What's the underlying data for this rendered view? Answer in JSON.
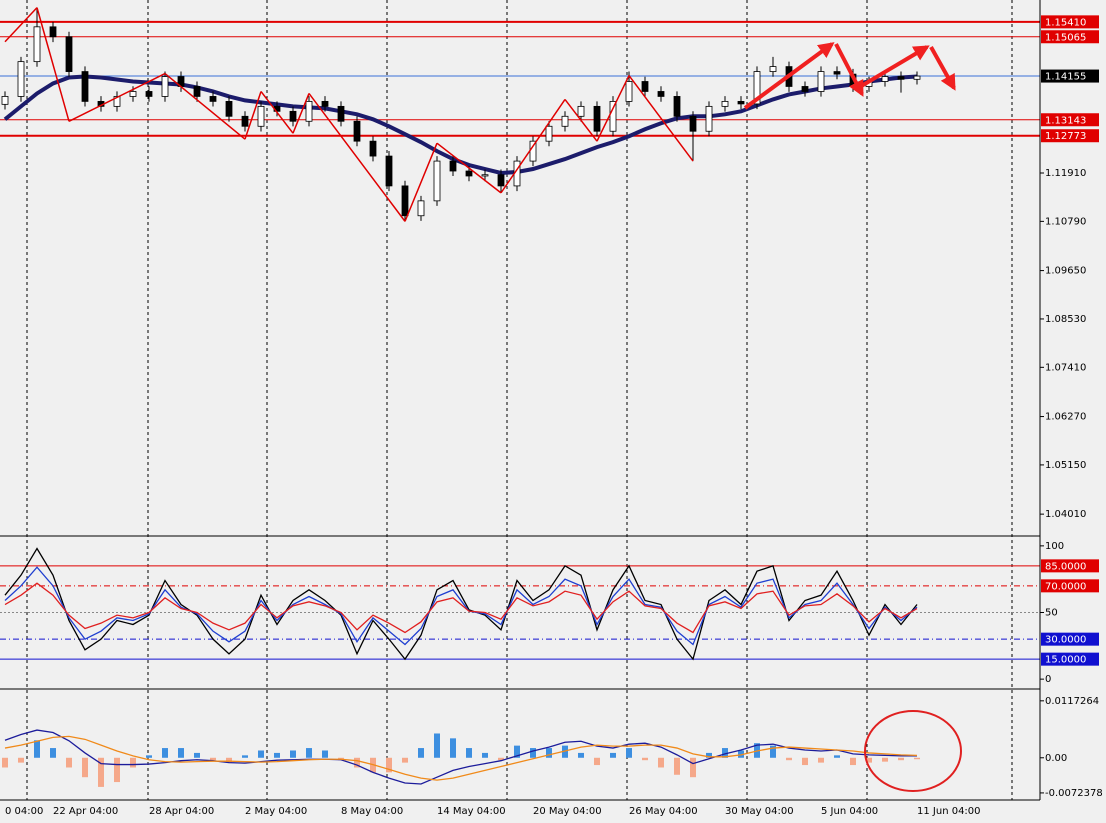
{
  "chart_data": [
    {
      "type": "candlestick",
      "categories": [
        "0 04:00",
        null,
        null,
        "22 Apr 04:00",
        null,
        null,
        null,
        null,
        null,
        "28 Apr 04:00",
        null,
        null,
        null,
        null,
        null,
        "2 May 04:00",
        null,
        null,
        null,
        null,
        null,
        "8 May 04:00",
        null,
        null,
        null,
        null,
        null,
        "14 May 04:00",
        null,
        null,
        null,
        null,
        null,
        "20 May 04:00",
        null,
        null,
        null,
        null,
        null,
        "26 May 04:00",
        null,
        null,
        null,
        null,
        null,
        "30 May 04:00",
        null,
        null,
        null,
        null,
        null,
        "5 Jun 04:00",
        null,
        null,
        null,
        null,
        null,
        "11 Jun 04:00"
      ],
      "open": [
        1.135,
        1.13683,
        1.14489,
        1.15295,
        1.15065,
        1.14259,
        1.13568,
        1.13453,
        1.13683,
        1.13798,
        1.13683,
        1.14144,
        1.13914,
        1.13683,
        1.13568,
        1.13223,
        1.12992,
        1.13453,
        1.13338,
        1.13108,
        1.13568,
        1.13453,
        1.13108,
        1.12647,
        1.12302,
        1.11611,
        1.1092,
        1.11265,
        1.12186,
        1.11956,
        1.11841,
        1.1187,
        1.11611,
        1.12186,
        1.12647,
        1.12992,
        1.13223,
        1.13453,
        1.12877,
        1.13568,
        1.14029,
        1.13798,
        1.13683,
        1.13223,
        1.12877,
        1.13453,
        1.13568,
        1.1351,
        1.14259,
        1.14374,
        1.13914,
        1.13798,
        1.14259,
        1.142,
        1.13914,
        1.14029,
        1.14144,
        1.1408
      ],
      "high": [
        1.138,
        1.146,
        1.1574,
        1.1541,
        1.1518,
        1.1438,
        1.1369,
        1.138,
        1.1392,
        1.1392,
        1.1426,
        1.1426,
        1.1403,
        1.138,
        1.1369,
        1.1334,
        1.1357,
        1.1357,
        1.1345,
        1.1369,
        1.1369,
        1.1357,
        1.1322,
        1.1276,
        1.1242,
        1.1173,
        1.1138,
        1.123,
        1.123,
        1.1207,
        1.1199,
        1.1199,
        1.123,
        1.1276,
        1.1311,
        1.1334,
        1.1357,
        1.1357,
        1.1369,
        1.1426,
        1.1414,
        1.1392,
        1.138,
        1.1334,
        1.1357,
        1.1369,
        1.1369,
        1.1438,
        1.146,
        1.1449,
        1.1403,
        1.1438,
        1.1438,
        1.1432,
        1.1414,
        1.1426,
        1.1426,
        1.1426
      ],
      "low": [
        1.1338,
        1.1356,
        1.1437,
        1.1494,
        1.1414,
        1.1345,
        1.1333,
        1.1333,
        1.1356,
        1.1356,
        1.1356,
        1.1379,
        1.1356,
        1.1345,
        1.131,
        1.1287,
        1.1287,
        1.1322,
        1.1299,
        1.1299,
        1.1333,
        1.1299,
        1.1253,
        1.1218,
        1.1149,
        1.1079,
        1.108,
        1.1115,
        1.1184,
        1.1172,
        1.1172,
        1.1145,
        1.1149,
        1.1207,
        1.1253,
        1.1287,
        1.131,
        1.1276,
        1.1276,
        1.1345,
        1.1368,
        1.1356,
        1.131,
        1.12186,
        1.1276,
        1.1333,
        1.1339,
        1.1339,
        1.1414,
        1.1379,
        1.1368,
        1.1368,
        1.1408,
        1.1379,
        1.1379,
        1.1391,
        1.1377,
        1.1396
      ],
      "close": [
        1.13683,
        1.14489,
        1.15295,
        1.15065,
        1.14259,
        1.13568,
        1.13453,
        1.13683,
        1.13798,
        1.13683,
        1.14144,
        1.13914,
        1.13683,
        1.13568,
        1.13223,
        1.12992,
        1.13453,
        1.13338,
        1.13108,
        1.13568,
        1.13453,
        1.13108,
        1.12647,
        1.12302,
        1.11611,
        1.1092,
        1.11265,
        1.12186,
        1.11956,
        1.11841,
        1.1187,
        1.11611,
        1.12186,
        1.12647,
        1.12992,
        1.13223,
        1.13453,
        1.12877,
        1.13568,
        1.14029,
        1.13798,
        1.13683,
        1.13223,
        1.12877,
        1.13453,
        1.13568,
        1.1351,
        1.14259,
        1.14374,
        1.13914,
        1.13798,
        1.14259,
        1.142,
        1.13914,
        1.14029,
        1.14144,
        1.1408,
        1.14155
      ],
      "up_color": "#ffffff",
      "down_color": "#000000",
      "series": [
        {
          "color": "#1c1c6b",
          "values": [
            1.13154,
            1.13453,
            1.13752,
            1.13983,
            1.14121,
            1.14144,
            1.14121,
            1.14075,
            1.14029,
            1.14006,
            1.13983,
            1.1396,
            1.13891,
            1.13798,
            1.13683,
            1.13591,
            1.13545,
            1.13499,
            1.13453,
            1.1343,
            1.13407,
            1.13338,
            1.13269,
            1.13154,
            1.12992,
            1.12808,
            1.12624,
            1.12417,
            1.12232,
            1.12094,
            1.12002,
            1.1191,
            1.11933,
            1.12002,
            1.12117,
            1.12232,
            1.12371,
            1.12509,
            1.12624,
            1.12762,
            1.12923,
            1.13062,
            1.13177,
            1.13223,
            1.13223,
            1.13269,
            1.13338,
            1.13476,
            1.13614,
            1.13729,
            1.13798,
            1.13868,
            1.13914,
            1.1396,
            1.14029,
            1.14075,
            1.14121,
            1.14144
          ]
        }
      ],
      "zigzag": {
        "color": "#e00000",
        "values": [
          1.1495,
          null,
          1.1574,
          null,
          1.13108,
          null,
          null,
          null,
          null,
          null,
          1.14213,
          null,
          null,
          null,
          null,
          1.12693,
          1.13798,
          null,
          1.12831,
          1.13752,
          null,
          null,
          null,
          null,
          null,
          1.1079,
          null,
          1.12601,
          null,
          null,
          null,
          1.1145,
          null,
          null,
          null,
          1.13614,
          null,
          1.12647,
          null,
          1.14167,
          null,
          null,
          null,
          1.12186,
          null,
          null,
          null,
          null,
          null,
          null,
          null,
          null,
          null,
          null,
          null,
          null,
          null,
          null
        ]
      },
      "levels": [
        {
          "value": 1.1541,
          "label": "1.15410",
          "color": "#e00000",
          "box": "#e00000",
          "width": 2
        },
        {
          "value": 1.15065,
          "label": "1.15065",
          "color": "#e00000",
          "box": "#e00000",
          "width": 1
        },
        {
          "value": 1.14155,
          "label": "1.14155",
          "color": "#3a6fd8",
          "box": "#000000",
          "width": 1
        },
        {
          "value": 1.13143,
          "label": "1.13143",
          "color": "#e00000",
          "box": "#e00000",
          "width": 1
        },
        {
          "value": 1.12773,
          "label": "1.12773",
          "color": "#e00000",
          "box": "#e00000",
          "width": 2
        }
      ],
      "ylim": [
        1.0355,
        1.1587
      ],
      "yticks": [
        {
          "value": 1.1191,
          "label": "1.11910"
        },
        {
          "value": 1.1079,
          "label": "1.10790"
        },
        {
          "value": 1.0965,
          "label": "1.09650"
        },
        {
          "value": 1.0853,
          "label": "1.08530"
        },
        {
          "value": 1.0741,
          "label": "1.07410"
        },
        {
          "value": 1.0627,
          "label": "1.06270"
        },
        {
          "value": 1.0515,
          "label": "1.05150"
        },
        {
          "value": 1.0401,
          "label": "1.04010"
        }
      ]
    },
    {
      "type": "line",
      "series": [
        {
          "color": "#000000",
          "values": [
            63,
            78,
            98,
            78,
            44,
            22,
            30,
            44,
            41,
            48,
            74,
            56,
            48,
            30,
            19,
            30,
            63,
            41,
            59,
            67,
            59,
            48,
            19,
            44,
            30,
            15,
            33,
            67,
            74,
            52,
            48,
            37,
            74,
            59,
            67,
            85,
            78,
            37,
            67,
            85,
            59,
            56,
            30,
            15,
            59,
            67,
            56,
            81,
            85,
            44,
            59,
            63,
            81,
            59,
            33,
            56,
            41,
            56
          ]
        },
        {
          "color": "#1f3fd0",
          "values": [
            59,
            70,
            84,
            70,
            46,
            30,
            36,
            46,
            44,
            49,
            67,
            54,
            49,
            36,
            28,
            36,
            59,
            44,
            56,
            62,
            56,
            49,
            28,
            46,
            36,
            26,
            38,
            62,
            67,
            51,
            49,
            41,
            67,
            56,
            62,
            75,
            70,
            41,
            62,
            75,
            56,
            54,
            36,
            26,
            56,
            62,
            54,
            72,
            75,
            46,
            56,
            59,
            72,
            56,
            38,
            54,
            44,
            54
          ]
        },
        {
          "color": "#e02020",
          "values": [
            56,
            63,
            72,
            63,
            48,
            38,
            42,
            48,
            46,
            50,
            61,
            53,
            50,
            42,
            37,
            42,
            56,
            46,
            55,
            58,
            55,
            50,
            37,
            48,
            42,
            35,
            43,
            58,
            61,
            51,
            50,
            45,
            61,
            55,
            58,
            66,
            63,
            45,
            58,
            66,
            55,
            53,
            42,
            35,
            55,
            58,
            53,
            64,
            66,
            48,
            55,
            56,
            64,
            55,
            43,
            53,
            46,
            53
          ]
        }
      ],
      "levels": [
        {
          "value": 85,
          "label": "85.0000",
          "color": "#e00000",
          "box": "#e00000",
          "style": "solid"
        },
        {
          "value": 70,
          "label": "70.0000",
          "color": "#e00000",
          "box": "#e00000",
          "style": "dashdot"
        },
        {
          "value": 50,
          "color": "#888888",
          "style": "dotted"
        },
        {
          "value": 30,
          "label": "30.0000",
          "color": "#1010d0",
          "box": "#1010d0",
          "style": "dashdot"
        },
        {
          "value": 15,
          "label": "15.0000",
          "color": "#1010d0",
          "box": "#1010d0",
          "style": "solid"
        }
      ],
      "ylim": [
        -5.9,
        105.9
      ],
      "yticks": [
        100,
        50,
        0
      ]
    },
    {
      "type": "macd",
      "histogram": {
        "pos_color": "#3d8fe0",
        "neg_color": "#f5a88a",
        "values": [
          -0.002,
          -0.001,
          0.0036,
          0.002,
          -0.002,
          -0.004,
          -0.006,
          -0.005,
          -0.002,
          0.0005,
          0.002,
          0.002,
          0.001,
          -0.0005,
          -0.001,
          0.0005,
          0.0015,
          0.001,
          0.0015,
          0.002,
          0.0015,
          -0.0005,
          -0.002,
          -0.003,
          -0.003,
          -0.001,
          0.002,
          0.005,
          0.004,
          0.002,
          0.001,
          -0.0005,
          0.0025,
          0.002,
          0.002,
          0.0025,
          0.001,
          -0.0015,
          0.001,
          0.002,
          -0.0005,
          -0.002,
          -0.0035,
          -0.004,
          0.001,
          0.002,
          0.0015,
          0.003,
          0.0025,
          -0.0005,
          -0.0015,
          -0.001,
          0.0005,
          -0.0015,
          -0.001,
          -0.0008,
          -0.0005,
          -0.0003
        ]
      },
      "series": [
        {
          "color": "#1c1c9b",
          "values": [
            0.0036,
            0.0048,
            0.0057,
            0.0052,
            0.0035,
            0.001,
            -0.0012,
            -0.0014,
            -0.0014,
            -0.0013,
            -0.001,
            -0.0006,
            -0.0004,
            -0.0006,
            -0.001,
            -0.0011,
            -0.0008,
            -0.0005,
            -0.0004,
            -0.0003,
            -0.0003,
            -0.0004,
            -0.0015,
            -0.003,
            -0.0042,
            -0.0052,
            -0.0054,
            -0.004,
            -0.0026,
            -0.0018,
            -0.0012,
            -0.0006,
            0.0004,
            0.0014,
            0.0022,
            0.0032,
            0.0034,
            0.0024,
            0.002,
            0.0028,
            0.003,
            0.0022,
            0.0006,
            -0.0012,
            -0.0002,
            0.0008,
            0.0016,
            0.0026,
            0.0028,
            0.002,
            0.0016,
            0.0014,
            0.0016,
            0.0008,
            0.0006,
            0.0005,
            0.0004,
            0.0004
          ]
        },
        {
          "color": "#f08a1a",
          "values": [
            0.002,
            0.0026,
            0.0034,
            0.0042,
            0.0044,
            0.0038,
            0.0026,
            0.0014,
            0.0004,
            -0.0004,
            -0.0008,
            -0.0009,
            -0.0008,
            -0.0007,
            -0.0007,
            -0.0008,
            -0.0009,
            -0.0008,
            -0.0006,
            -0.0004,
            -0.0003,
            -0.0003,
            -0.0006,
            -0.0014,
            -0.0024,
            -0.0034,
            -0.0042,
            -0.0046,
            -0.0042,
            -0.0034,
            -0.0026,
            -0.0018,
            -0.001,
            -0.0002,
            0.0006,
            0.0014,
            0.0022,
            0.0026,
            0.0024,
            0.0024,
            0.0026,
            0.0026,
            0.002,
            0.0008,
            0.0002,
            0.0002,
            0.0006,
            0.0014,
            0.002,
            0.0022,
            0.002,
            0.0018,
            0.0016,
            0.0014,
            0.001,
            0.0008,
            0.0006,
            0.0005
          ]
        }
      ],
      "ylim": [
        -0.00849,
        0.01375
      ],
      "yticks": [
        0.0117264,
        {
          "value": 0,
          "label": "0.00"
        },
        -0.0072378
      ]
    }
  ]
}
